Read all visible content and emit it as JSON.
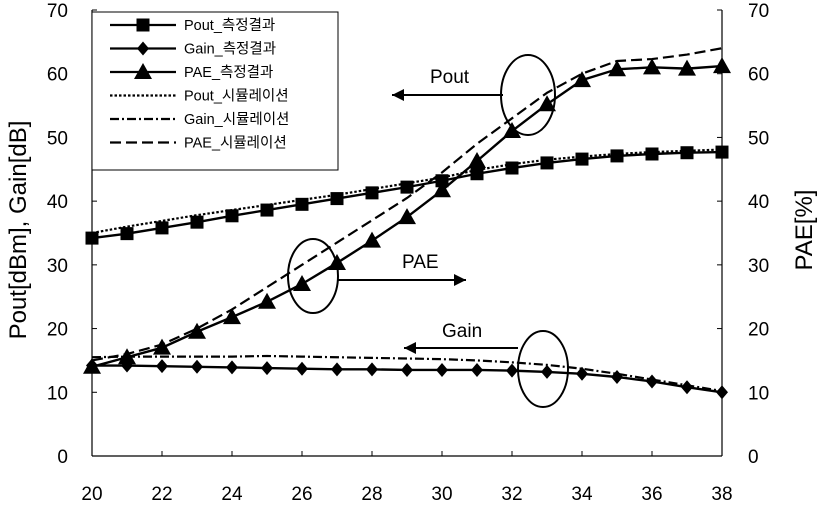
{
  "chart_data": {
    "type": "line",
    "x": [
      20,
      21,
      22,
      23,
      24,
      25,
      26,
      27,
      28,
      29,
      30,
      31,
      32,
      33,
      34,
      35,
      36,
      37,
      38
    ],
    "xlim": [
      20,
      38
    ],
    "x_ticks": [
      "20",
      "22",
      "24",
      "26",
      "28",
      "30",
      "32",
      "34",
      "36",
      "38"
    ],
    "y_left": {
      "label": "Pout[dBm], Gain[dB]",
      "lim": [
        0,
        70
      ],
      "ticks": [
        "0",
        "10",
        "20",
        "30",
        "40",
        "50",
        "60",
        "70"
      ]
    },
    "y_right": {
      "label": "PAE[%]",
      "lim": [
        0,
        70
      ],
      "ticks": [
        "0",
        "10",
        "20",
        "30",
        "40",
        "50",
        "60",
        "70"
      ]
    },
    "grid": false,
    "legend_position": "top-left",
    "series": [
      {
        "name": "Pout_측정결과",
        "style": "solid",
        "marker": "square",
        "values": [
          34.2,
          34.9,
          35.8,
          36.7,
          37.7,
          38.6,
          39.5,
          40.4,
          41.3,
          42.2,
          43.2,
          44.3,
          45.2,
          46.0,
          46.6,
          47.1,
          47.4,
          47.6,
          47.7
        ]
      },
      {
        "name": "Gain_측정결과",
        "style": "solid",
        "marker": "diamond",
        "values": [
          14.2,
          14.2,
          14.1,
          14.0,
          13.9,
          13.8,
          13.7,
          13.6,
          13.6,
          13.5,
          13.5,
          13.5,
          13.4,
          13.2,
          12.9,
          12.4,
          11.7,
          10.8,
          10.0
        ]
      },
      {
        "name": "PAE_측정결과",
        "style": "solid",
        "marker": "triangle",
        "values": [
          14.0,
          15.5,
          17.0,
          19.5,
          21.8,
          24.2,
          27.0,
          30.3,
          33.8,
          37.5,
          41.7,
          46.3,
          51.0,
          55.2,
          59.0,
          60.7,
          61.0,
          60.8,
          61.2
        ]
      },
      {
        "name": "Pout_시뮬레이션",
        "style": "dotted",
        "marker": "none",
        "values": [
          35.0,
          36.0,
          36.9,
          37.8,
          38.6,
          39.4,
          40.2,
          41.0,
          41.9,
          42.8,
          43.7,
          44.9,
          45.8,
          46.5,
          47.0,
          47.4,
          47.7,
          47.9,
          48.1
        ]
      },
      {
        "name": "Gain_시뮬레이션",
        "style": "dashdot",
        "marker": "none",
        "values": [
          15.5,
          15.6,
          15.6,
          15.6,
          15.6,
          15.7,
          15.6,
          15.5,
          15.4,
          15.3,
          15.2,
          15.0,
          14.7,
          14.3,
          13.7,
          12.9,
          12.0,
          11.1,
          10.2
        ]
      },
      {
        "name": "PAE_시뮬레이션",
        "style": "dashed",
        "marker": "none",
        "values": [
          15.0,
          16.0,
          17.5,
          20.0,
          23.0,
          26.5,
          30.0,
          33.5,
          37.0,
          40.5,
          44.5,
          49.0,
          53.0,
          57.0,
          60.0,
          62.0,
          62.3,
          63.0,
          64.0
        ]
      }
    ],
    "annotations": [
      {
        "text": "Pout"
      },
      {
        "text": "PAE"
      },
      {
        "text": "Gain"
      }
    ]
  }
}
